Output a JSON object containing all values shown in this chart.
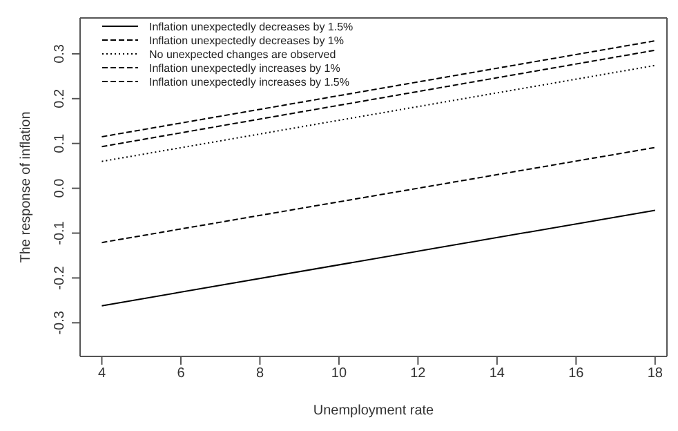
{
  "chart_data": {
    "type": "line",
    "xlabel": "Unemployment rate",
    "ylabel": "The response of inflation",
    "x": [
      4,
      18
    ],
    "series": [
      {
        "name": "Inflation unexpectedly decreases by 1.5%",
        "color": "#000000",
        "line_style": "solid",
        "values": [
          -0.262,
          -0.049
        ]
      },
      {
        "name": "Inflation unexpectedly decreases by 1%",
        "color": "#000000",
        "line_style": "dashed",
        "values": [
          -0.121,
          0.091
        ]
      },
      {
        "name": "No unexpected changes are observed",
        "color": "#000000",
        "line_style": "dotted",
        "values": [
          0.06,
          0.274
        ]
      },
      {
        "name": "Inflation unexpectedly increases by 1%",
        "color": "#000000",
        "line_style": "dashed",
        "values": [
          0.115,
          0.329
        ]
      },
      {
        "name": "Inflation unexpectedly increases by 1.5%",
        "color": "#000000",
        "line_style": "dashed",
        "values": [
          0.093,
          0.308
        ]
      }
    ],
    "xlim": [
      3.45,
      18.3
    ],
    "xticks": [
      4,
      6,
      8,
      10,
      12,
      14,
      16,
      18
    ],
    "ylim": [
      -0.375,
      0.38
    ],
    "yticks": [
      {
        "value": -0.3,
        "label": "-0.3"
      },
      {
        "value": -0.2,
        "label": "-0.2"
      },
      {
        "value": -0.1,
        "label": "-0.1"
      },
      {
        "value": 0,
        "label": "0.0"
      },
      {
        "value": 0.1,
        "label": "0.1"
      },
      {
        "value": 0.2,
        "label": "0.2"
      },
      {
        "value": 0.3,
        "label": "0.3"
      }
    ],
    "grid": false,
    "legend": "top left",
    "marker": "none"
  }
}
